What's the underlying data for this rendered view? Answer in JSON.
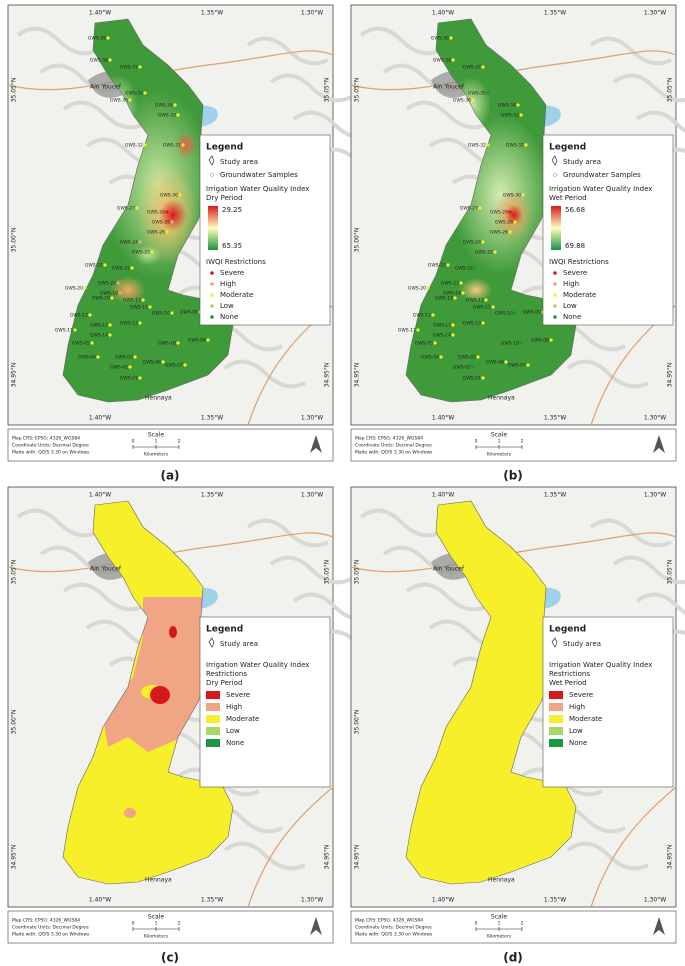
{
  "map": {
    "lon_labels": [
      "1.40°W",
      "1.35°W",
      "1.30°W"
    ],
    "lat_labels": [
      "35.05°N",
      "35.00°N",
      "34.95°N"
    ],
    "towns": [
      "Ain Youcef",
      "Hennaya"
    ],
    "sample_labels": [
      "GWS-39",
      "GWS-38",
      "GWS-37",
      "GWS-35",
      "GWS-36",
      "GWS-34",
      "GWS-33",
      "GWS-32",
      "GWS-31",
      "GWS-30",
      "GWS-29",
      "GWS-27",
      "GWS-28",
      "GWS-26",
      "GWS-24",
      "GWS-25",
      "GWS-21",
      "GWS-22",
      "GWS-23",
      "GWS-20",
      "GWS-19",
      "GWS-16",
      "GWS-17",
      "GWS-15",
      "GWS-10",
      "GWS-09",
      "GWS-12",
      "GWS-13",
      "GWS-11",
      "GWS-L7",
      "GWS-14",
      "GWS-18",
      "GWS-08",
      "GWS-05",
      "GWS-04",
      "GWS-03",
      "GWS-06",
      "GWS-07",
      "GWS-02",
      "GWS-01"
    ],
    "info": [
      "Map CRS: EPSG: 4326_WGS84",
      "Coordinate Units: Decimal Degree",
      "Made with: QGIS 3.30 on Windows"
    ],
    "scale": {
      "title": "Scale",
      "ticks": [
        "0",
        "1",
        "2"
      ],
      "unit": "Kilometers"
    },
    "classes": [
      {
        "name": "Severe",
        "color": "#d7191c"
      },
      {
        "name": "High",
        "color": "#f0a585"
      },
      {
        "name": "Moderate",
        "color": "#f6ef2a"
      },
      {
        "name": "Low",
        "color": "#a6d96a"
      },
      {
        "name": "None",
        "color": "#1a9641"
      }
    ]
  },
  "panels": [
    {
      "caption": "(a)",
      "legend": {
        "title": "Legend",
        "study_area": "Study area",
        "samples": "Groundwater Samples",
        "index_title": [
          "Irrigation Water Quality Index"
        ],
        "period": "Dry Period",
        "colorbar": [
          29.25,
          65.35
        ],
        "classes_title": "IWQI Restrictions"
      }
    },
    {
      "caption": "(b)",
      "legend": {
        "title": "Legend",
        "study_area": "Study area",
        "samples": "Groundwater Samples",
        "index_title": [
          "Irrigation Water Quality Index"
        ],
        "period": "Wet Period",
        "colorbar": [
          56.68,
          69.88
        ],
        "classes_title": "IWQI Restrictions"
      }
    },
    {
      "caption": "(c)",
      "legend": {
        "title": "Legend",
        "study_area": "Study area",
        "index_title": [
          "Irrigation Water Quality Index",
          "Restrictions"
        ],
        "period": "Dry Period"
      }
    },
    {
      "caption": "(d)",
      "legend": {
        "title": "Legend",
        "study_area": "Study area",
        "index_title": [
          "Irrigation Water Quality Index",
          "Restrictions"
        ],
        "period": "Wet Period"
      }
    }
  ]
}
